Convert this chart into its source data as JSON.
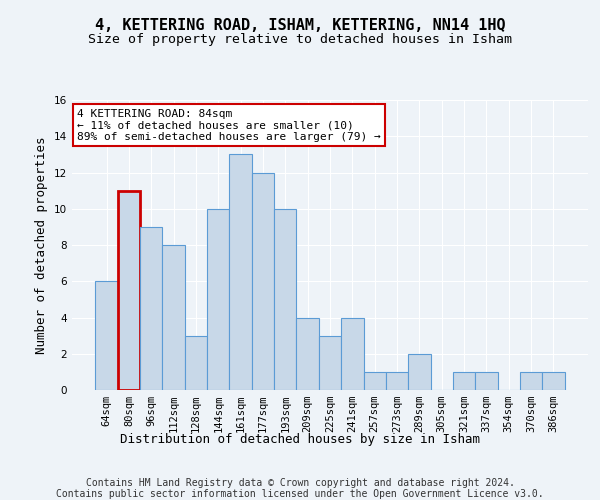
{
  "title": "4, KETTERING ROAD, ISHAM, KETTERING, NN14 1HQ",
  "subtitle": "Size of property relative to detached houses in Isham",
  "xlabel": "Distribution of detached houses by size in Isham",
  "ylabel": "Number of detached properties",
  "categories": [
    "64sqm",
    "80sqm",
    "96sqm",
    "112sqm",
    "128sqm",
    "144sqm",
    "161sqm",
    "177sqm",
    "193sqm",
    "209sqm",
    "225sqm",
    "241sqm",
    "257sqm",
    "273sqm",
    "289sqm",
    "305sqm",
    "321sqm",
    "337sqm",
    "354sqm",
    "370sqm",
    "386sqm"
  ],
  "values": [
    6,
    11,
    9,
    8,
    3,
    10,
    13,
    12,
    10,
    4,
    3,
    4,
    1,
    1,
    2,
    0,
    1,
    1,
    0,
    1,
    1
  ],
  "bar_color": "#c8d8e8",
  "bar_edge_color": "#5b9bd5",
  "highlight_bar_index": 1,
  "highlight_edge_color": "#cc0000",
  "annotation_text": "4 KETTERING ROAD: 84sqm\n← 11% of detached houses are smaller (10)\n89% of semi-detached houses are larger (79) →",
  "annotation_box_edge_color": "#cc0000",
  "ylim": [
    0,
    16
  ],
  "yticks": [
    0,
    2,
    4,
    6,
    8,
    10,
    12,
    14,
    16
  ],
  "background_color": "#eef3f8",
  "plot_bg_color": "#eef3f8",
  "grid_color": "#ffffff",
  "footer_line1": "Contains HM Land Registry data © Crown copyright and database right 2024.",
  "footer_line2": "Contains public sector information licensed under the Open Government Licence v3.0.",
  "title_fontsize": 11,
  "subtitle_fontsize": 9.5,
  "axis_label_fontsize": 9,
  "tick_fontsize": 7.5,
  "annotation_fontsize": 8,
  "footer_fontsize": 7
}
